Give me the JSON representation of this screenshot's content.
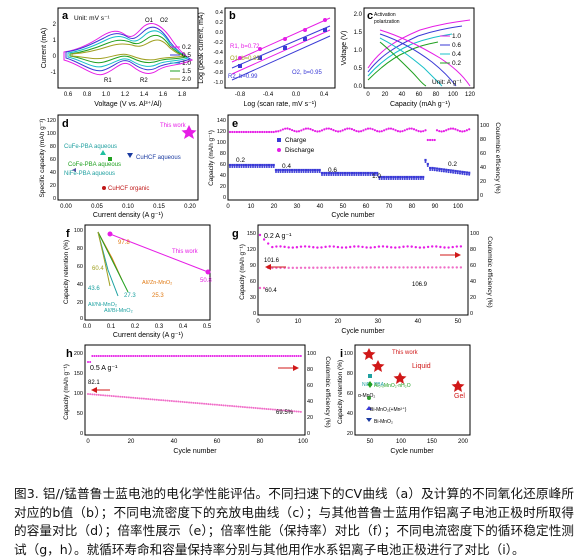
{
  "caption": "图3. 铝//锰普鲁士蓝电池的电化学性能评估。不同扫速下的CV曲线（a）及计算的不同氧化还原峰所对应的b值（b）；不同电流密度下的充放电曲线（c）；与其他普鲁士蓝用作铝离子电池正极时所取得的容量对比（d）；倍率性展示（e）；倍率性能（保持率）对比（f）；不同电流密度下的循环稳定性测试（g，h）。就循环寿命和容量保持率分别与其他用作水系铝离子电池正极进行了对比（i）。",
  "colors": {
    "magenta": "#e61de6",
    "pink": "#f06ec8",
    "blue": "#3a3ad6",
    "green": "#20a020",
    "olive": "#a0a020",
    "red": "#d01818",
    "teal": "#1aa0a0",
    "cyan": "#18c0c8",
    "orange": "#e07a14"
  },
  "panels": {
    "a": {
      "label": "a",
      "unit": "Unit: mV s⁻¹",
      "xlabel": "Voltage (V vs. Al³⁺/Al)",
      "ylabel": "Current (mA)",
      "xticks": [
        "0.6",
        "0.8",
        "1.0",
        "1.2",
        "1.4",
        "1.6",
        "1.8"
      ],
      "yticks": [
        "-1",
        "0",
        "1",
        "2"
      ],
      "peaks": [
        "O1",
        "O2",
        "R1",
        "R2"
      ],
      "legend": [
        "0.2",
        "0.5",
        "1.0",
        "1.5",
        "2.0"
      ]
    },
    "b": {
      "label": "b",
      "xlabel": "Log (scan rate, mV s⁻¹)",
      "ylabel": "Log (peak current, mA)",
      "xticks": [
        "-0.8",
        "-0.4",
        "0.0",
        "0.4"
      ],
      "yticks": [
        "-1.0",
        "-0.8",
        "-0.6",
        "-0.4",
        "-0.2",
        "0.0",
        "0.2",
        "0.4"
      ],
      "fits": [
        "R1, b=0.72",
        "O1, b=0.83",
        "R2, b=0.99",
        "O2, b=0.95"
      ]
    },
    "c": {
      "label": "c",
      "xlabel": "Capacity (mAh g⁻¹)",
      "ylabel": "Voltage (V)",
      "xticks": [
        "0",
        "20",
        "40",
        "60",
        "80",
        "100",
        "120"
      ],
      "yticks": [
        "0.0",
        "0.5",
        "1.0",
        "1.5",
        "2.0"
      ],
      "notes": [
        "Activation",
        "polarization"
      ],
      "unit": "Unit: A g⁻¹",
      "legend": [
        "1.0",
        "0.6",
        "0.4",
        "0.2"
      ]
    },
    "d": {
      "label": "d",
      "xlabel": "Current density (A g⁻¹)",
      "ylabel": "Specific capacity (mAh g⁻¹)",
      "xticks": [
        "0.00",
        "0.05",
        "0.10",
        "0.15",
        "0.20"
      ],
      "yticks": [
        "0",
        "20",
        "40",
        "60",
        "80",
        "100",
        "120"
      ],
      "points": [
        "This work",
        "CuFe-PBA aqueous",
        "CuHCF aqueous",
        "CoFe-PBA aqueous",
        "NiFe-PBA aqueous",
        "CuHCF organic"
      ]
    },
    "e": {
      "label": "e",
      "xlabel": "Cycle number",
      "ylabel": "Capacity (mAh g⁻¹)",
      "y2label": "Coulombic efficiency (%)",
      "xticks": [
        "0",
        "10",
        "20",
        "30",
        "40",
        "50",
        "60",
        "70",
        "80",
        "90",
        "100"
      ],
      "yticks": [
        "0",
        "20",
        "40",
        "60",
        "80",
        "100",
        "120",
        "140"
      ],
      "y2ticks": [
        "0",
        "20",
        "40",
        "60",
        "80",
        "100"
      ],
      "legend": [
        "Charge",
        "Discharge"
      ],
      "rates": [
        "0.2",
        "0.4",
        "0.6",
        "1.0",
        "0.2"
      ]
    },
    "f": {
      "label": "f",
      "xlabel": "Current density (A g⁻¹)",
      "ylabel": "Capacity retention (%)",
      "xticks": [
        "0.0",
        "0.1",
        "0.2",
        "0.3",
        "0.4",
        "0.5"
      ],
      "yticks": [
        "0",
        "10",
        "20",
        "30",
        "40",
        "50",
        "60",
        "70",
        "80",
        "90",
        "100"
      ],
      "values": [
        "97.8",
        "This work",
        "50.8",
        "60.4",
        "43.6",
        "27.3",
        "25.3"
      ],
      "series": [
        "Al//Ni-MnO₂",
        "Al//Zn-MnO₂",
        "Al//Bi-MnO₂"
      ]
    },
    "g": {
      "label": "g",
      "rate": "0.2 A g⁻¹",
      "xlabel": "Cycle number",
      "ylabel": "Capacity (mAh g⁻¹)",
      "y2label": "Coulombic efficiency (%)",
      "xticks": [
        "0",
        "10",
        "20",
        "30",
        "40",
        "50"
      ],
      "yticks": [
        "0",
        "30",
        "60",
        "90",
        "120",
        "150"
      ],
      "y2ticks": [
        "0",
        "20",
        "40",
        "60",
        "80",
        "100"
      ],
      "values": [
        "101.6",
        "60.4",
        "106.9"
      ]
    },
    "h": {
      "label": "h",
      "rate": "0.5 A g⁻¹",
      "xlabel": "Cycle number",
      "ylabel": "Capacity (mAh g⁻¹)",
      "y2label": "Coulombic efficiency (%)",
      "xticks": [
        "0",
        "20",
        "40",
        "60",
        "80",
        "100"
      ],
      "yticks": [
        "0",
        "50",
        "100",
        "150",
        "200"
      ],
      "y2ticks": [
        "0",
        "20",
        "40",
        "60",
        "80",
        "100"
      ],
      "values": [
        "82.1",
        "69.5%"
      ]
    },
    "i": {
      "label": "i",
      "xlabel": "Cycle number",
      "ylabel": "Capacity retention (%)",
      "xticks": [
        "50",
        "100",
        "150",
        "200"
      ],
      "yticks": [
        "20",
        "40",
        "60",
        "80",
        "100"
      ],
      "points": [
        "This work",
        "Liquid",
        "Gel",
        "NiFe PBA",
        "Al₀.₅MnO₂·nH₂O",
        "α-MnO₂",
        "Bi-MnO₂(+Mn²⁺)",
        "Bi-MnO₂"
      ]
    }
  }
}
